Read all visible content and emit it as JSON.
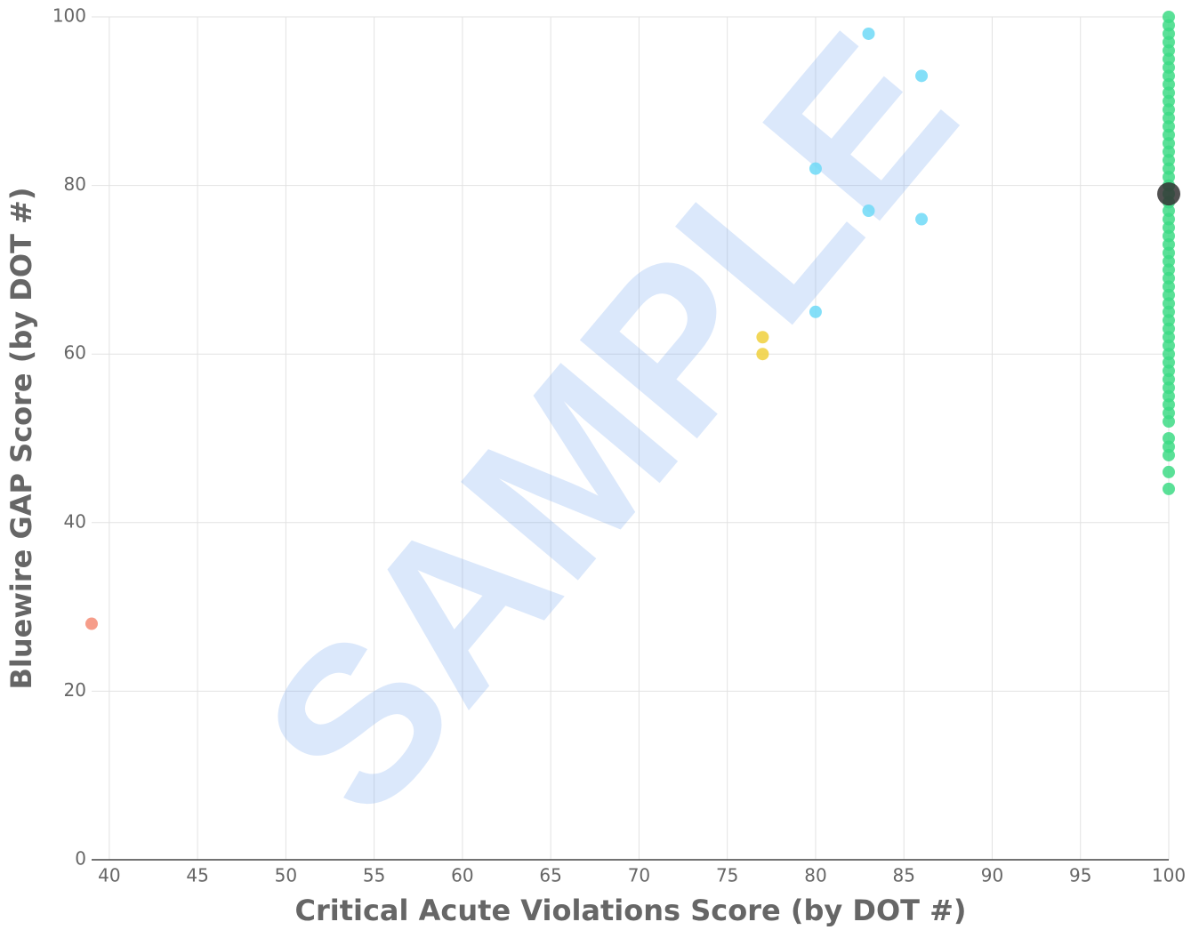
{
  "chart_data": {
    "type": "scatter",
    "xlabel": "Critical Acute Violations Score (by DOT #)",
    "ylabel": "Bluewire GAP Score (by DOT #)",
    "watermark": "SAMPLE",
    "xlim": [
      39,
      100
    ],
    "xticks": [
      40,
      45,
      50,
      55,
      60,
      65,
      70,
      75,
      80,
      85,
      90,
      95,
      100
    ],
    "ylim": [
      0,
      100
    ],
    "yticks": [
      0,
      20,
      40,
      60,
      80,
      100
    ],
    "grid": true,
    "series": [
      {
        "color": "#f58c75",
        "marker_size": 7,
        "x": [
          39
        ],
        "values": [
          28
        ]
      },
      {
        "color": "#f0d03c",
        "marker_size": 7,
        "x": [
          77,
          77
        ],
        "values": [
          62,
          60
        ]
      },
      {
        "color": "#6fd9f7",
        "marker_size": 7,
        "x": [
          83,
          86,
          80,
          83,
          86,
          80
        ],
        "values": [
          98,
          93,
          82,
          77,
          76,
          65
        ]
      },
      {
        "color": "#3ddb85",
        "marker_size": 7,
        "x": [
          100,
          100,
          100,
          100,
          100,
          100,
          100,
          100,
          100,
          100,
          100,
          100,
          100,
          100,
          100,
          100,
          100,
          100,
          100,
          100,
          100,
          100,
          100,
          100,
          100,
          100,
          100,
          100,
          100,
          100,
          100,
          100,
          100,
          100,
          100,
          100,
          100,
          100,
          100,
          100,
          100,
          100,
          100,
          100,
          100,
          100,
          100,
          100,
          100,
          100,
          100,
          100,
          100,
          100
        ],
        "values": [
          100,
          99,
          98,
          97,
          96,
          95,
          94,
          93,
          92,
          91,
          90,
          89,
          88,
          87,
          86,
          85,
          84,
          83,
          82,
          81,
          80,
          78,
          77,
          76,
          75,
          74,
          73,
          72,
          71,
          70,
          69,
          68,
          67,
          66,
          65,
          64,
          63,
          62,
          61,
          60,
          59,
          58,
          57,
          56,
          55,
          54,
          53,
          52,
          50,
          49,
          48,
          46,
          44,
          79
        ]
      },
      {
        "color": "#333333",
        "marker_size": 13,
        "x": [
          100
        ],
        "values": [
          79
        ]
      }
    ]
  }
}
